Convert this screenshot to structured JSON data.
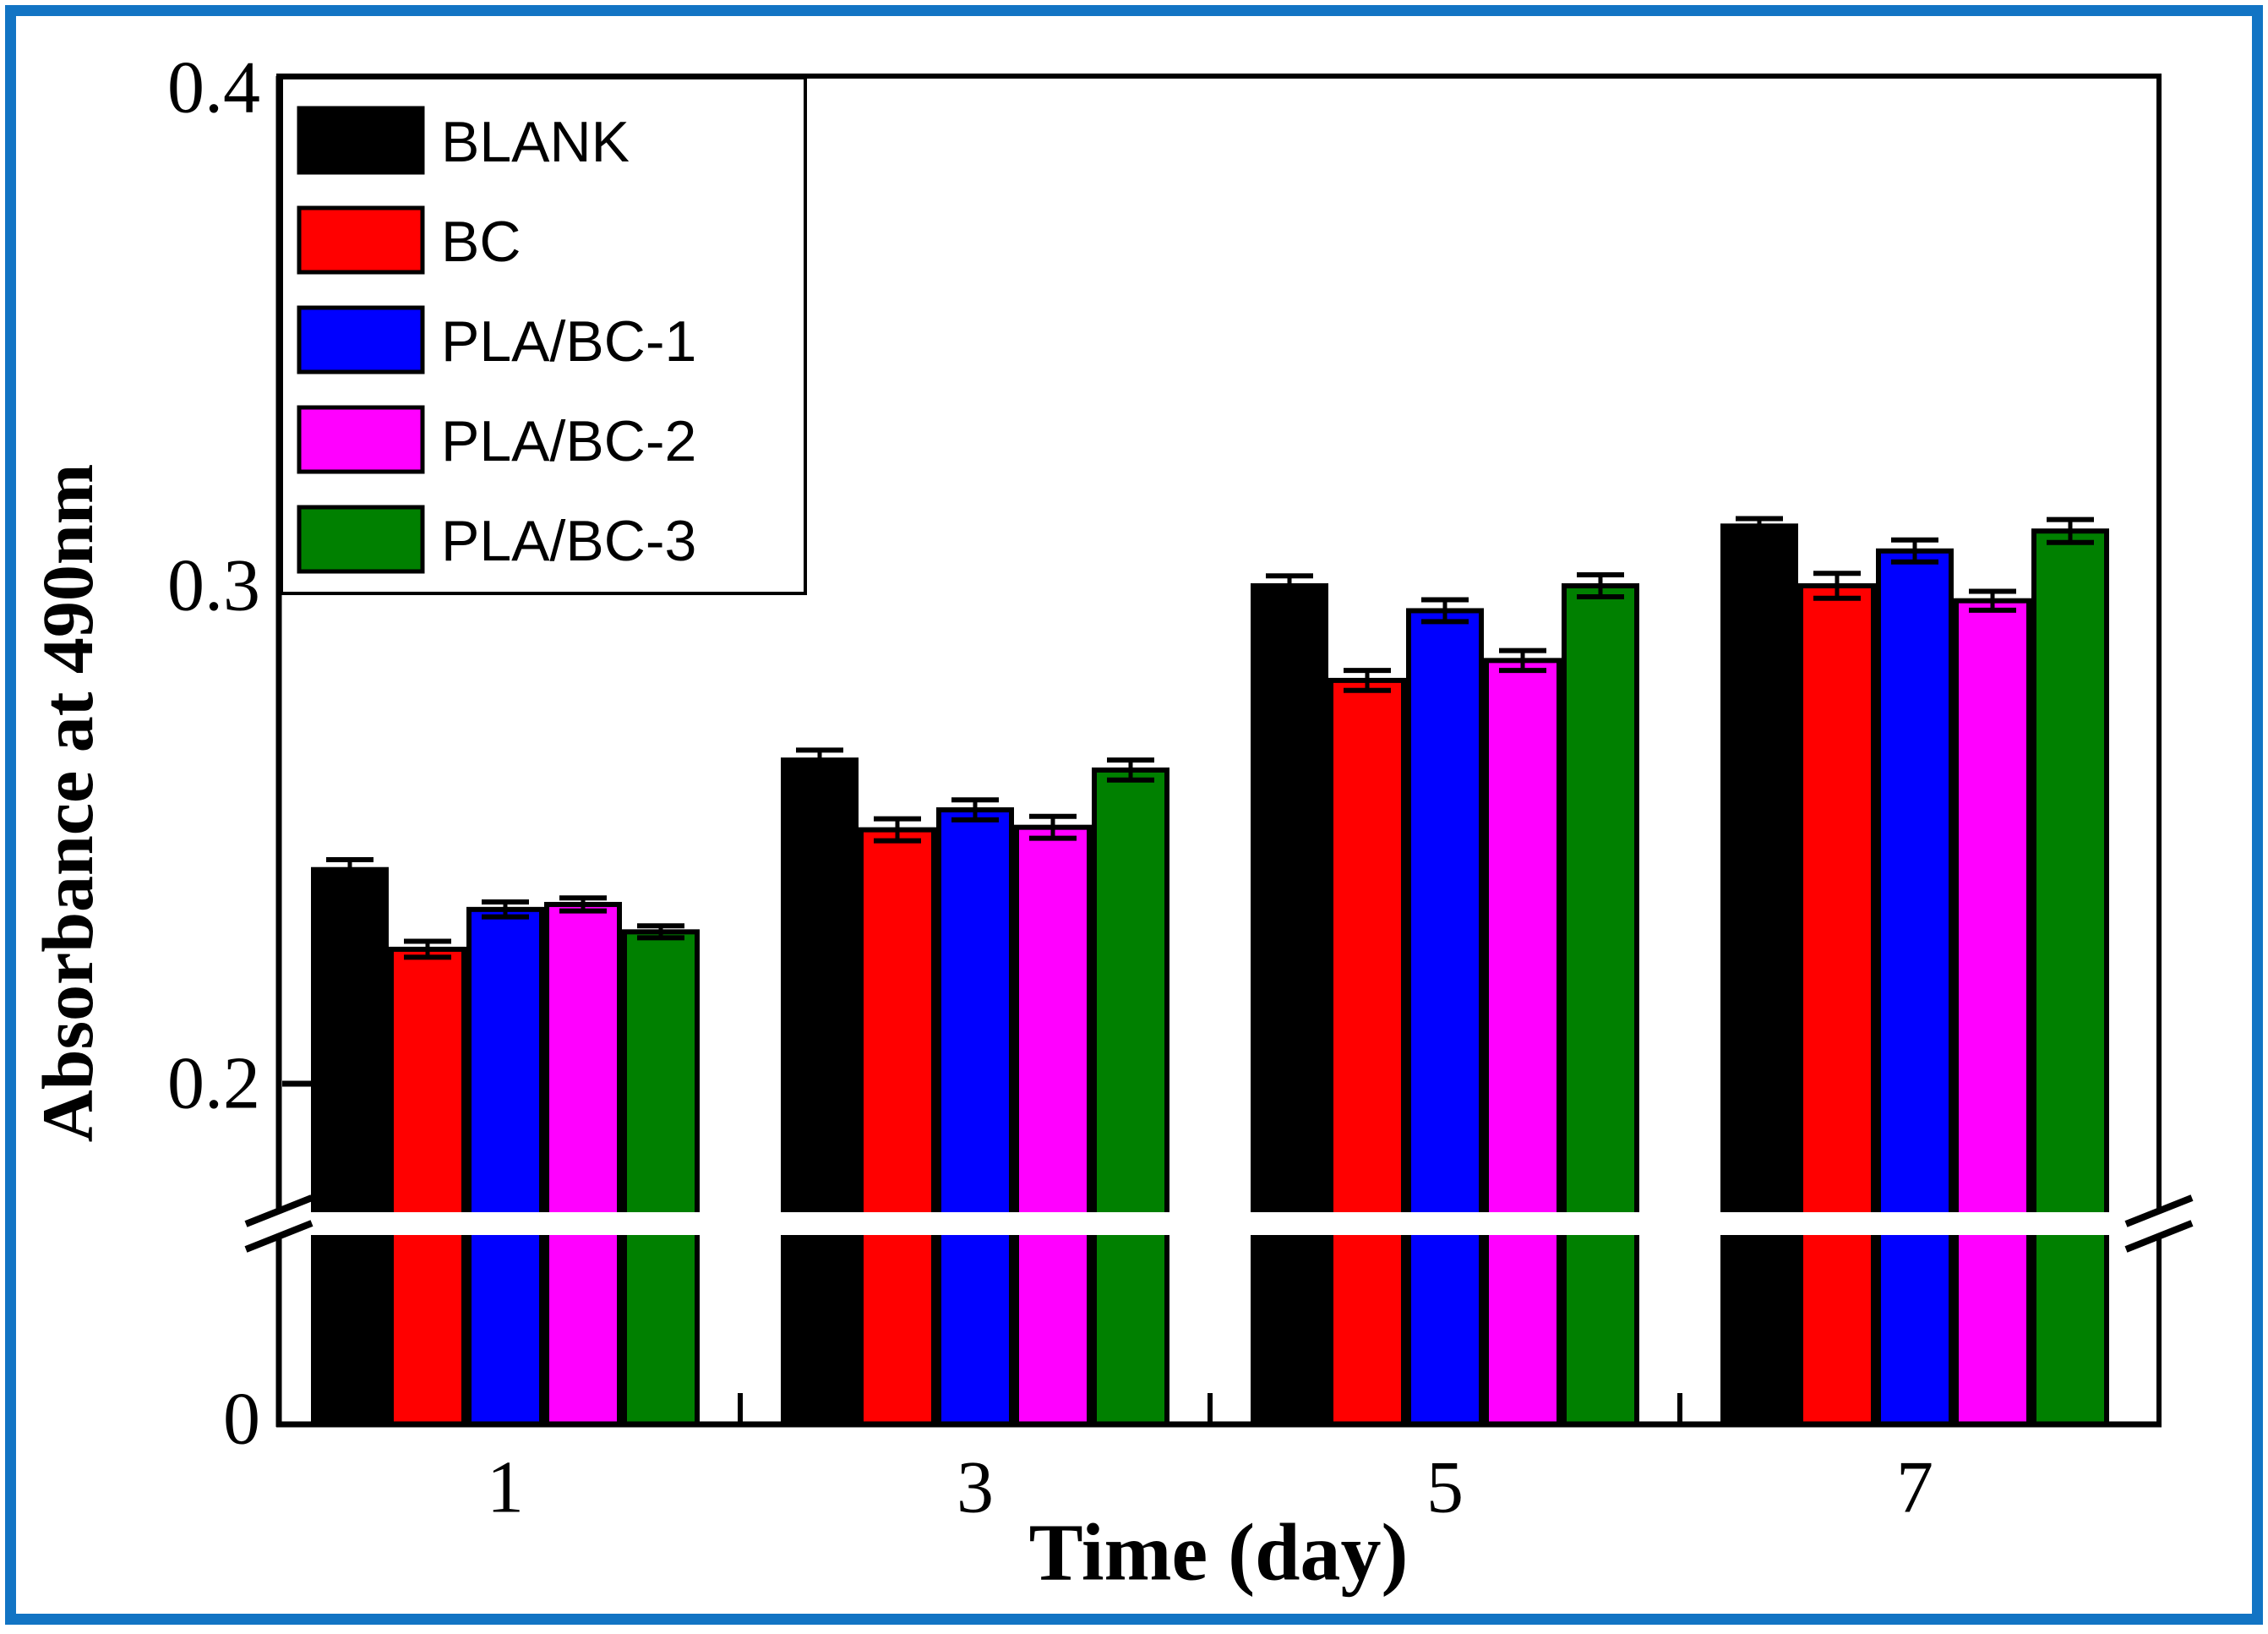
{
  "figure": {
    "border_color": "#1274c4",
    "background": "#ffffff"
  },
  "chart_data": {
    "type": "bar",
    "title": "",
    "xlabel": "Time (day)",
    "ylabel": "Absorbance at 490nm",
    "categories": [
      "1",
      "3",
      "5",
      "7"
    ],
    "series": [
      {
        "name": "BLANK",
        "color": "#000000",
        "values": [
          0.243,
          0.265,
          0.3,
          0.312
        ],
        "errors": [
          0.002,
          0.002,
          0.002,
          0.0015
        ]
      },
      {
        "name": "BC",
        "color": "#ff0000",
        "values": [
          0.227,
          0.251,
          0.281,
          0.3
        ],
        "errors": [
          0.0016,
          0.0022,
          0.002,
          0.0025
        ]
      },
      {
        "name": "PLA/BC-1",
        "color": "#0000ff",
        "values": [
          0.235,
          0.255,
          0.295,
          0.307
        ],
        "errors": [
          0.0015,
          0.002,
          0.0022,
          0.0022
        ]
      },
      {
        "name": "PLA/BC-2",
        "color": "#ff00ff",
        "values": [
          0.236,
          0.2515,
          0.285,
          0.297
        ],
        "errors": [
          0.0013,
          0.0022,
          0.002,
          0.0019
        ]
      },
      {
        "name": "PLA/BC-3",
        "color": "#008000",
        "values": [
          0.2305,
          0.263,
          0.3,
          0.311
        ],
        "errors": [
          0.0012,
          0.002,
          0.0022,
          0.0023
        ]
      }
    ],
    "y_ticks": [
      "0.4",
      "0.3",
      "0.2",
      "0"
    ],
    "y_tick_values": [
      0.4,
      0.3,
      0.2,
      0
    ],
    "ylim": [
      0,
      0.4
    ],
    "axis_break": true,
    "legend_position": "top-left",
    "grid": false
  }
}
